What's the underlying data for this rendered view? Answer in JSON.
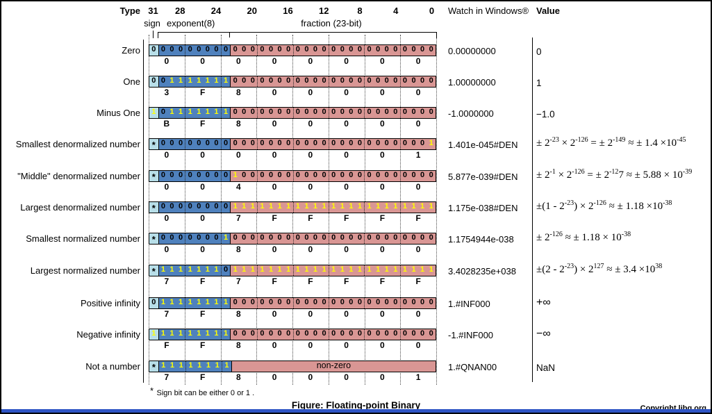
{
  "header": {
    "type_label": "Type",
    "bit_numbers": [
      {
        "label": "31",
        "bit": 31
      },
      {
        "label": "28",
        "bit": 28
      },
      {
        "label": "24",
        "bit": 24
      },
      {
        "label": "20",
        "bit": 20
      },
      {
        "label": "16",
        "bit": 16
      },
      {
        "label": "12",
        "bit": 12
      },
      {
        "label": "8",
        "bit": 8
      },
      {
        "label": "4",
        "bit": 4
      },
      {
        "label": "0",
        "bit": 0
      }
    ],
    "sign_label": "sign",
    "exponent_label": "exponent(8)",
    "fraction_label": "fraction (23-bit)",
    "watch_label": "Watch in Windows®",
    "value_label": "Value"
  },
  "rows": [
    {
      "label": "Zero",
      "sign": "0",
      "exponent": "00000000",
      "fraction": "00000000000000000000000",
      "hex": [
        "0",
        "0",
        "0",
        "0",
        "0",
        "0",
        "0",
        "0"
      ],
      "watch": "0.00000000",
      "value_style": "plain",
      "value": [
        {
          "t": "0"
        }
      ]
    },
    {
      "label": "One",
      "sign": "0",
      "exponent": "01111111",
      "fraction": "00000000000000000000000",
      "hex": [
        "3",
        "F",
        "8",
        "0",
        "0",
        "0",
        "0",
        "0"
      ],
      "watch": "1.00000000",
      "value_style": "plain",
      "value": [
        {
          "t": "1"
        }
      ]
    },
    {
      "label": "Minus One",
      "sign": "1",
      "exponent": "01111111",
      "fraction": "00000000000000000000000",
      "hex": [
        "B",
        "F",
        "8",
        "0",
        "0",
        "0",
        "0",
        "0"
      ],
      "watch": "-1.0000000",
      "value_style": "plain",
      "value": [
        {
          "t": "−1.0"
        }
      ]
    },
    {
      "label": "Smallest denormalized number",
      "sign": "*",
      "exponent": "00000000",
      "fraction": "00000000000000000000001",
      "hex": [
        "0",
        "0",
        "0",
        "0",
        "0",
        "0",
        "0",
        "1"
      ],
      "watch": "1.401e-045#DEN",
      "value_style": "formula",
      "value": [
        {
          "t": "± 2"
        },
        {
          "s": "-23"
        },
        {
          "t": " × 2"
        },
        {
          "s": "-126"
        },
        {
          "t": " = ± 2"
        },
        {
          "s": "-149"
        },
        {
          "t": " ≈ ± 1.4 ×10"
        },
        {
          "s": "-45"
        }
      ]
    },
    {
      "label": "\"Middle\" denormalized number",
      "sign": "*",
      "exponent": "00000000",
      "fraction": "10000000000000000000000",
      "hex": [
        "0",
        "0",
        "4",
        "0",
        "0",
        "0",
        "0",
        "0"
      ],
      "watch": "5.877e-039#DEN",
      "value_style": "formula",
      "value": [
        {
          "t": "± 2"
        },
        {
          "s": "-1"
        },
        {
          "t": " × 2"
        },
        {
          "s": "-126"
        },
        {
          "t": " = ± 2"
        },
        {
          "s": "-12"
        },
        {
          "t": "7 ≈ ± 5.88 × 10"
        },
        {
          "s": "-39"
        }
      ]
    },
    {
      "label": "Largest denormalized number",
      "sign": "*",
      "exponent": "00000000",
      "fraction": "11111111111111111111111",
      "hex": [
        "0",
        "0",
        "7",
        "F",
        "F",
        "F",
        "F",
        "F"
      ],
      "watch": "1.175e-038#DEN",
      "value_style": "formula",
      "value": [
        {
          "t": "±(1 - 2"
        },
        {
          "s": "-23"
        },
        {
          "t": ") × 2"
        },
        {
          "s": "-126"
        },
        {
          "t": " ≈ ± 1.18 ×10"
        },
        {
          "s": "-38"
        }
      ]
    },
    {
      "label": "Smallest normalized number",
      "sign": "*",
      "exponent": "00000001",
      "fraction": "00000000000000000000000",
      "hex": [
        "0",
        "0",
        "8",
        "0",
        "0",
        "0",
        "0",
        "0"
      ],
      "watch": "1.1754944e-038",
      "value_style": "formula",
      "value": [
        {
          "t": "± 2"
        },
        {
          "s": "-126"
        },
        {
          "t": " ≈ ± 1.18 × 10"
        },
        {
          "s": "-38"
        }
      ]
    },
    {
      "label": "Largest normalized number",
      "sign": "*",
      "exponent": "11111110",
      "fraction": "11111111111111111111111",
      "hex": [
        "7",
        "F",
        "7",
        "F",
        "F",
        "F",
        "F",
        "F"
      ],
      "watch": "3.4028235e+038",
      "value_style": "formula",
      "value": [
        {
          "t": "±(2 - 2"
        },
        {
          "s": "-23"
        },
        {
          "t": ") × 2"
        },
        {
          "s": "127"
        },
        {
          "t": " ≈ ± 3.4 ×10"
        },
        {
          "s": "38"
        }
      ]
    },
    {
      "label": "Positive infinity",
      "sign": "0",
      "exponent": "11111111",
      "fraction": "00000000000000000000000",
      "hex": [
        "7",
        "F",
        "8",
        "0",
        "0",
        "0",
        "0",
        "0"
      ],
      "watch": "1.#INF000",
      "value_style": "infinity",
      "value": [
        {
          "t": "+∞"
        }
      ]
    },
    {
      "label": "Negative infinity",
      "sign": "1",
      "exponent": "11111111",
      "fraction": "00000000000000000000000",
      "hex": [
        "F",
        "F",
        "8",
        "0",
        "0",
        "0",
        "0",
        "0"
      ],
      "watch": "-1.#INF000",
      "value_style": "infinity",
      "value": [
        {
          "t": "−∞"
        }
      ]
    },
    {
      "label": "Not a number",
      "sign": "*",
      "exponent": "11111111",
      "fraction_text": "non-zero",
      "hex": [
        "7",
        "F",
        "8",
        "0",
        "0",
        "0",
        "0",
        "1"
      ],
      "watch": "1.#QNAN00",
      "value_style": "plain",
      "value": [
        {
          "t": "NaN"
        }
      ]
    }
  ],
  "footer": {
    "footnote_star": "*",
    "footnote": "Sign bit can be either 0 or 1 .",
    "caption": "Figure: Floating-point Binary",
    "copyright": "Copyright libg.org"
  },
  "colors": {
    "sign_bg": "#b7dee8",
    "exponent_bg": "#4f81bd",
    "fraction_bg": "#d99694",
    "one_bit": "#ffff00",
    "bottom_bar": "#2f55c5"
  }
}
